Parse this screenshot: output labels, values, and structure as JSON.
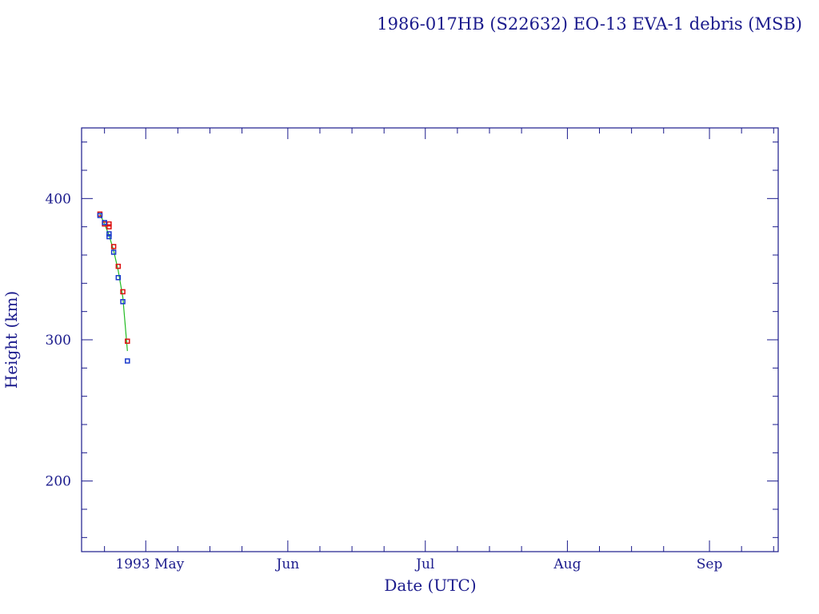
{
  "chart_data": {
    "type": "scatter",
    "title": "1986-017HB (S22632) EO-13 EVA-1 debris (MSB)",
    "xlabel": "Date (UTC)",
    "ylabel": "Height (km)",
    "xlim": [
      "1993-04-17",
      "1993-09-16"
    ],
    "ylim": [
      150,
      450
    ],
    "x_ticks": [
      {
        "date": "1993-05-01",
        "label": "1993 May"
      },
      {
        "date": "1993-06-01",
        "label": "Jun"
      },
      {
        "date": "1993-07-01",
        "label": "Jul"
      },
      {
        "date": "1993-08-01",
        "label": "Aug"
      },
      {
        "date": "1993-09-01",
        "label": "Sep"
      }
    ],
    "y_ticks": [
      {
        "value": 200,
        "label": "200"
      },
      {
        "value": 300,
        "label": "300"
      },
      {
        "value": 400,
        "label": "400"
      }
    ],
    "grid": false,
    "series": [
      {
        "role": "apogee",
        "marker": "square",
        "color": "#dd1111",
        "points": [
          {
            "x": "1993-04-21",
            "y": 389
          },
          {
            "x": "1993-04-22",
            "y": 382
          },
          {
            "x": "1993-04-23",
            "y": 382
          },
          {
            "x": "1993-04-23",
            "y": 380
          },
          {
            "x": "1993-04-24",
            "y": 366
          },
          {
            "x": "1993-04-25",
            "y": 352
          },
          {
            "x": "1993-04-26",
            "y": 334
          },
          {
            "x": "1993-04-27",
            "y": 299
          }
        ]
      },
      {
        "role": "perigee",
        "marker": "square",
        "color": "#1a3acc",
        "points": [
          {
            "x": "1993-04-21",
            "y": 388
          },
          {
            "x": "1993-04-22",
            "y": 383
          },
          {
            "x": "1993-04-23",
            "y": 375
          },
          {
            "x": "1993-04-23",
            "y": 373
          },
          {
            "x": "1993-04-24",
            "y": 362
          },
          {
            "x": "1993-04-25",
            "y": 344
          },
          {
            "x": "1993-04-26",
            "y": 327
          },
          {
            "x": "1993-04-27",
            "y": 285
          }
        ]
      },
      {
        "role": "mean",
        "marker": "line",
        "color": "#22bb22",
        "points": [
          {
            "x": "1993-04-21",
            "y": 389
          },
          {
            "x": "1993-04-22",
            "y": 382
          },
          {
            "x": "1993-04-23",
            "y": 374
          },
          {
            "x": "1993-04-24",
            "y": 363
          },
          {
            "x": "1993-04-25",
            "y": 349
          },
          {
            "x": "1993-04-26",
            "y": 330
          },
          {
            "x": "1993-04-27",
            "y": 292
          }
        ]
      }
    ]
  }
}
